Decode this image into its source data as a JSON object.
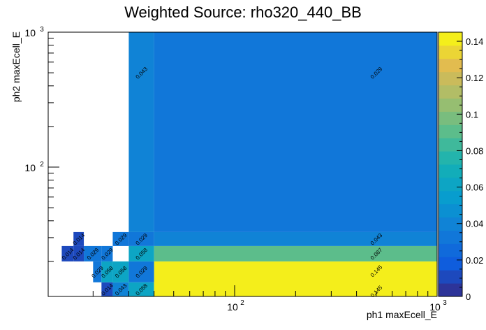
{
  "chart_data": {
    "type": "heatmap",
    "title": "Weighted Source: rho320_440_BB",
    "xlabel": "ph1 maxEcell_E",
    "ylabel": "ph2 maxEcell_E",
    "xscale": "log",
    "yscale": "log",
    "xlim": [
      12,
      1000
    ],
    "ylim": [
      11,
      1000
    ],
    "x_tick_labels": [
      "10",
      "10",
      "2",
      "3"
    ],
    "x_ticks": [
      {
        "value": 100,
        "base": "10",
        "exp": "2"
      },
      {
        "value": 1000,
        "base": "10",
        "exp": "3"
      }
    ],
    "y_ticks": [
      {
        "value": 100,
        "base": "10",
        "exp": "2"
      },
      {
        "value": 1000,
        "base": "10",
        "exp": "3"
      }
    ],
    "colorbar": {
      "min": 0,
      "max": 0.145,
      "tick_values": [
        0,
        0.02,
        0.04,
        0.06,
        0.08,
        0.1,
        0.12,
        0.14
      ],
      "tick_labels": [
        "0",
        "0.02",
        "0.04",
        "0.06",
        "0.08",
        "0.1",
        "0.12",
        "0.14"
      ]
    },
    "cells": [
      {
        "x0": 22,
        "x1": 25,
        "y0": 11,
        "y1": 14,
        "value": 0.014,
        "label": "0.014"
      },
      {
        "x0": 25,
        "x1": 30,
        "y0": 11,
        "y1": 14,
        "value": 0.043,
        "label": "0.043"
      },
      {
        "x0": 30,
        "x1": 40,
        "y0": 11,
        "y1": 14,
        "value": 0.058,
        "label": "0.058"
      },
      {
        "x0": 40,
        "x1": 1000,
        "y0": 11,
        "y1": 20,
        "value": 0.145,
        "label": "0.145"
      },
      {
        "x0": 40,
        "x1": 1000,
        "y0": 11,
        "y1": 20,
        "value": 0.145,
        "label": "0.145",
        "label_only": true,
        "label_y": 17
      },
      {
        "x0": 20,
        "x1": 22,
        "y0": 14,
        "y1": 20,
        "value": 0.029,
        "label": "0.029"
      },
      {
        "x0": 22,
        "x1": 25,
        "y0": 14,
        "y1": 20,
        "value": 0.058,
        "label": "0.058"
      },
      {
        "x0": 25,
        "x1": 30,
        "y0": 14,
        "y1": 20,
        "value": 0.058,
        "label": "0.058"
      },
      {
        "x0": 30,
        "x1": 40,
        "y0": 14,
        "y1": 20,
        "value": 0.029,
        "label": "0.029"
      },
      {
        "x0": 14,
        "x1": 16,
        "y0": 20,
        "y1": 26,
        "value": 0.014,
        "label": "0.014"
      },
      {
        "x0": 16,
        "x1": 18,
        "y0": 20,
        "y1": 26,
        "value": 0.014,
        "label": "0.014"
      },
      {
        "x0": 18,
        "x1": 22,
        "y0": 20,
        "y1": 26,
        "value": 0.029,
        "label": "0.029"
      },
      {
        "x0": 22,
        "x1": 25,
        "y0": 20,
        "y1": 26,
        "value": 0.029,
        "label": "0.029"
      },
      {
        "x0": 30,
        "x1": 40,
        "y0": 20,
        "y1": 26,
        "value": 0.058,
        "label": "0.058"
      },
      {
        "x0": 40,
        "x1": 1000,
        "y0": 20,
        "y1": 26,
        "value": 0.087,
        "label": "0.087"
      },
      {
        "x0": 16,
        "x1": 18,
        "y0": 26,
        "y1": 33,
        "value": 0.014,
        "label": "0.014"
      },
      {
        "x0": 25,
        "x1": 30,
        "y0": 26,
        "y1": 33,
        "value": 0.029,
        "label": "0.029"
      },
      {
        "x0": 30,
        "x1": 40,
        "y0": 26,
        "y1": 33,
        "value": 0.029,
        "label": "0.029"
      },
      {
        "x0": 40,
        "x1": 1000,
        "y0": 26,
        "y1": 33,
        "value": 0.043,
        "label": "0.043"
      },
      {
        "x0": 30,
        "x1": 40,
        "y0": 33,
        "y1": 1000,
        "value": 0.043,
        "label": "0.043"
      },
      {
        "x0": 40,
        "x1": 1000,
        "y0": 33,
        "y1": 1000,
        "value": 0.029,
        "label": "0.029"
      }
    ]
  }
}
